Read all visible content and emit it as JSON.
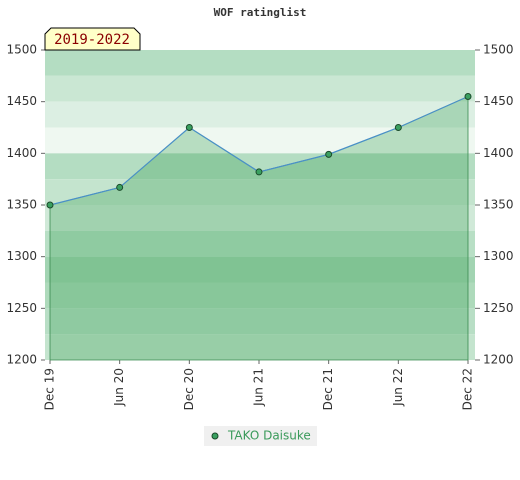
{
  "chart_data": {
    "type": "area",
    "title": "WOF ratinglist",
    "annotation": "2019-2022",
    "categories": [
      "Dec 19",
      "Jun 20",
      "Dec 20",
      "Jun 21",
      "Dec 21",
      "Jun 22",
      "Dec 22"
    ],
    "series": [
      {
        "name": "TAKO Daisuke",
        "color": "#4a90c8",
        "values": [
          1350,
          1367,
          1425,
          1382,
          1399,
          1425,
          1455
        ]
      }
    ],
    "ylim": [
      1200,
      1500
    ],
    "yticks": [
      1200,
      1250,
      1300,
      1350,
      1400,
      1450,
      1500
    ],
    "y2lim": [
      1200,
      1500
    ],
    "y2ticks": [
      1200,
      1250,
      1300,
      1350,
      1400,
      1450,
      1500
    ]
  }
}
